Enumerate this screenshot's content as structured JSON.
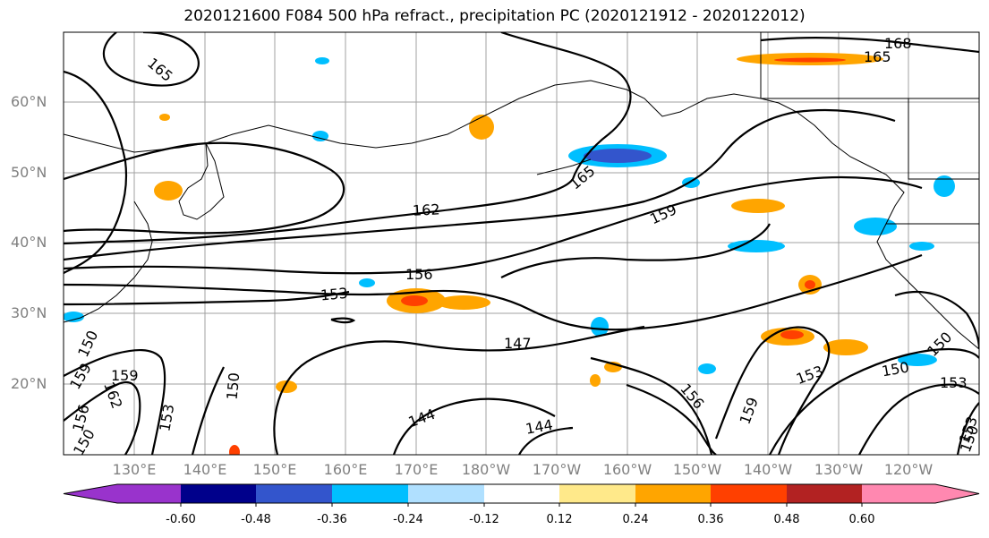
{
  "title": "2020121600 F084 500 hPa refract., precipitation PC (2020121912 - 2020122012)",
  "lat_labels": [
    "20°N",
    "30°N",
    "40°N",
    "50°N",
    "60°N"
  ],
  "lon_labels": [
    "130°E",
    "140°E",
    "150°E",
    "160°E",
    "170°E",
    "180°W",
    "170°W",
    "160°W",
    "150°W",
    "140°W",
    "130°W",
    "120°W"
  ],
  "contour_labels": [
    "168",
    "165",
    "165",
    "165",
    "162",
    "159",
    "156",
    "153",
    "150",
    "147",
    "144",
    "144",
    "159",
    "156",
    "159",
    "153",
    "150",
    "153",
    "150",
    "150",
    "162",
    "159",
    "156",
    "150",
    "153",
    "153",
    "150"
  ],
  "colorbar": {
    "tick_labels": [
      "-0.60",
      "-0.48",
      "-0.36",
      "-0.24",
      "-0.12",
      "0.12",
      "0.24",
      "0.36",
      "0.48",
      "0.60"
    ],
    "colors": [
      "#9933cc",
      "#00008b",
      "#3355cc",
      "#00bfff",
      "#b0e0ff",
      "#ffffff",
      "#ffe98a",
      "#ffa500",
      "#ff4000",
      "#b22222",
      "#ff88b0"
    ]
  }
}
